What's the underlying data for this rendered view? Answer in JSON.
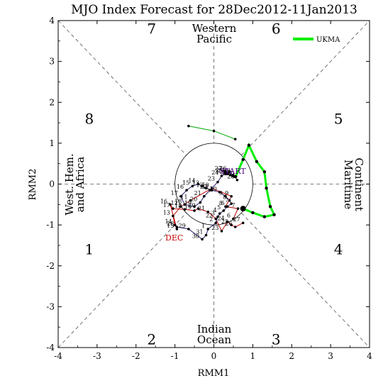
{
  "title": "MJO Index Forecast for 28Dec2012-11Jan2013",
  "axes": {
    "xlabel": "RMM1",
    "ylabel": "RMM2",
    "xticks": [
      "-4",
      "-3",
      "-2",
      "-1",
      "0",
      "1",
      "2",
      "3",
      "4"
    ],
    "yticks": [
      "-4",
      "-3",
      "-2",
      "-1",
      "0",
      "1",
      "2",
      "3",
      "4"
    ]
  },
  "phases": [
    "1",
    "2",
    "3",
    "4",
    "5",
    "6",
    "7",
    "8"
  ],
  "regions": {
    "western_pacific": [
      "Western",
      "Pacific"
    ],
    "indian_ocean": [
      "Indian",
      "Ocean"
    ],
    "west_hem": [
      "West. Hem.",
      "and Africa"
    ],
    "maritime": [
      "Maritime",
      "Continent"
    ]
  },
  "annotations": {
    "month": "DEC",
    "start": "START"
  },
  "legend": {
    "label": "UKMA",
    "color": "#00ee00"
  },
  "chart_data": {
    "type": "scatter",
    "title": "MJO Index Forecast for 28Dec2012-11Jan2013",
    "xlabel": "RMM1",
    "ylabel": "RMM2",
    "xlim": [
      -4,
      4
    ],
    "ylim": [
      -4,
      4
    ],
    "grid": false,
    "legend_position": "top-right",
    "unit_circle_radius": 1,
    "series": [
      {
        "name": "",
        "color": "#c00000",
        "labels": [
          "6",
          "7",
          "8",
          "9",
          "10",
          "11",
          "12",
          "13",
          "14",
          "15",
          "16",
          "17",
          "18",
          "19",
          "20",
          "21",
          "22",
          "23",
          "24",
          "25",
          "26",
          "27"
        ],
        "x": [
          0.5,
          0.62,
          0.3,
          0.45,
          -0.05,
          -0.6,
          -0.85,
          -1.05,
          -1.0,
          -0.95,
          -1.12,
          -1.05,
          -0.75,
          -0.5,
          -0.4,
          -0.15,
          0.05,
          0.2,
          0.35,
          0.45,
          0.55,
          0.75
        ],
        "y": [
          -0.85,
          -0.6,
          -0.55,
          -0.3,
          -0.1,
          -0.4,
          -0.55,
          -0.78,
          -1.0,
          -1.1,
          -0.5,
          -0.6,
          -0.62,
          -0.65,
          -0.6,
          -0.68,
          -0.85,
          -1.15,
          -0.92,
          -1.0,
          -1.05,
          -0.95
        ]
      },
      {
        "name": "",
        "color": "#2a1a6a",
        "labels": [
          "28",
          "29",
          "30",
          "31",
          "1",
          "2",
          "3",
          "4",
          "5",
          "6",
          "7",
          "8",
          "9",
          "10",
          "11",
          "12",
          "13",
          "14",
          "15",
          "16",
          "17",
          "18",
          "19",
          "20",
          "21",
          "22",
          "23",
          "24",
          "25",
          "26",
          "27",
          "28"
        ],
        "x": [
          -0.95,
          -0.65,
          -0.3,
          -0.2,
          -0.15,
          0.05,
          0.1,
          0.15,
          0.25,
          0.35,
          0.45,
          0.4,
          0.3,
          0.15,
          -0.05,
          -0.2,
          -0.3,
          -0.4,
          -0.55,
          -0.7,
          -0.85,
          -0.75,
          -0.5,
          -0.35,
          -0.25,
          -0.1,
          0.1,
          0.2,
          0.3,
          0.4,
          0.5,
          0.6
        ],
        "y": [
          -1.05,
          -1.1,
          -1.35,
          -1.25,
          -1.1,
          -0.95,
          -0.8,
          -0.72,
          -0.65,
          -0.55,
          -0.48,
          -0.4,
          -0.3,
          -0.2,
          -0.15,
          -0.1,
          -0.05,
          0.0,
          -0.05,
          -0.15,
          -0.3,
          -0.5,
          -0.55,
          -0.45,
          -0.3,
          -0.15,
          0.05,
          0.2,
          0.25,
          0.3,
          0.22,
          0.1
        ]
      },
      {
        "name": "",
        "color": "#4b0082",
        "labels": [
          "22",
          "23",
          "24",
          "25",
          "26",
          "27"
        ],
        "x": [
          0.28,
          0.35,
          0.42,
          0.48,
          0.52,
          0.56
        ],
        "y": [
          0.3,
          0.25,
          0.22,
          0.2,
          0.18,
          0.18
        ]
      },
      {
        "name": "UKMA",
        "color": "#00ee00",
        "x": [
          0.56,
          0.75,
          0.9,
          1.1,
          1.3,
          1.35,
          1.45,
          1.55,
          1.3,
          1.0,
          0.75
        ],
        "y": [
          0.18,
          0.6,
          0.95,
          0.55,
          0.3,
          -0.1,
          -0.55,
          -0.75,
          -0.8,
          -0.7,
          -0.6
        ]
      },
      {
        "name": "",
        "color": "#00aa00",
        "x": [
          -0.65,
          0.0,
          0.55
        ],
        "y": [
          1.42,
          1.3,
          1.1
        ]
      }
    ]
  }
}
